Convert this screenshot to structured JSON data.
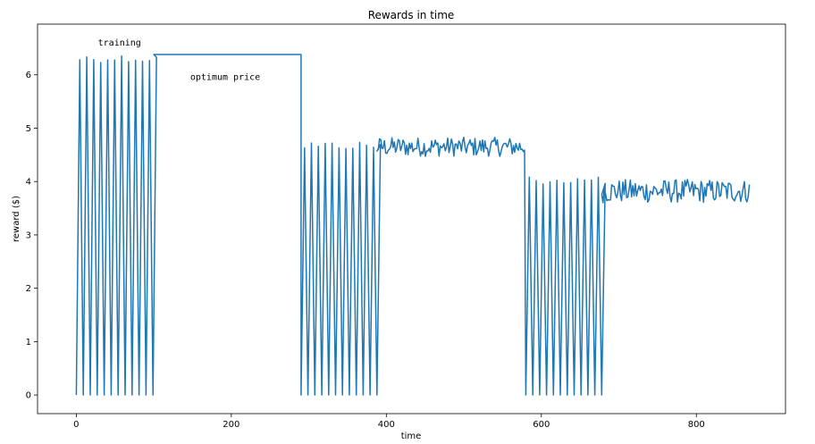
{
  "chart_data": {
    "type": "line",
    "title": "Rewards in time",
    "xlabel": "time",
    "ylabel": "reward ($)",
    "xlim": [
      -50,
      915
    ],
    "ylim": [
      -0.35,
      6.95
    ],
    "xticks": [
      0,
      200,
      400,
      600,
      800
    ],
    "yticks": [
      0,
      1,
      2,
      3,
      4,
      5,
      6
    ],
    "grid": false,
    "color": "#1f77b4",
    "annotations": [
      {
        "text": "training",
        "x": 28,
        "y": 6.6
      },
      {
        "text": "optimum price",
        "x": 147,
        "y": 5.95
      }
    ],
    "segments": [
      {
        "phase": "training",
        "start": 0,
        "end": 100,
        "period": 9,
        "low": 0,
        "high": 6.38
      },
      {
        "phase": "optimum",
        "start": 100,
        "end": 290,
        "value": 6.38
      },
      {
        "phase": "training",
        "start": 290,
        "end": 388,
        "period": 8.9,
        "low": 0,
        "high": 4.75
      },
      {
        "phase": "optimum",
        "start": 388,
        "end": 580,
        "mean": 4.65,
        "noise": 0.18
      },
      {
        "phase": "training",
        "start": 580,
        "end": 678,
        "period": 8.9,
        "low": 0,
        "high": 4.1
      },
      {
        "phase": "optimum",
        "start": 678,
        "end": 870,
        "mean": 3.82,
        "noise": 0.22
      }
    ]
  }
}
